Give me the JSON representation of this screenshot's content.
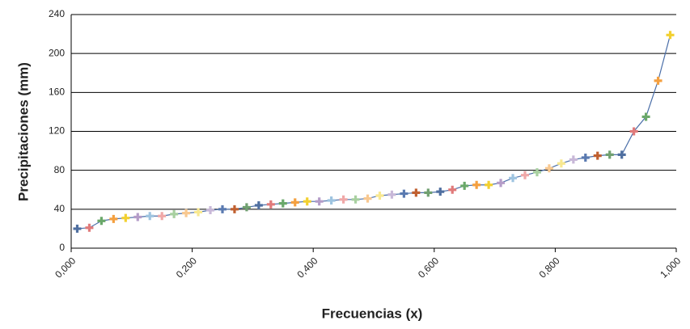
{
  "chart_data": {
    "type": "line",
    "xlabel": "Frecuencias (x)",
    "ylabel": "Precipitaciones (mm)",
    "series": [
      {
        "name": "Precipitaciones",
        "color": "#4a6ea8",
        "x": [
          0.01,
          0.03,
          0.05,
          0.07,
          0.09,
          0.11,
          0.13,
          0.15,
          0.17,
          0.19,
          0.21,
          0.23,
          0.25,
          0.27,
          0.29,
          0.31,
          0.33,
          0.35,
          0.37,
          0.39,
          0.41,
          0.43,
          0.45,
          0.47,
          0.49,
          0.51,
          0.53,
          0.55,
          0.57,
          0.59,
          0.61,
          0.63,
          0.65,
          0.67,
          0.69,
          0.71,
          0.73,
          0.75,
          0.77,
          0.79,
          0.81,
          0.83,
          0.85,
          0.87,
          0.89,
          0.91,
          0.93,
          0.95,
          0.97,
          0.99
        ],
        "values": [
          20,
          21,
          28,
          30,
          31,
          32,
          33,
          33,
          35,
          36,
          37,
          39,
          40,
          40,
          42,
          44,
          45,
          46,
          47,
          48,
          48,
          49,
          50,
          50,
          51,
          54,
          55,
          56,
          57,
          57,
          58,
          60,
          64,
          65,
          65,
          67,
          72,
          75,
          78,
          82,
          87,
          91,
          93,
          95,
          96,
          96,
          120,
          135,
          172,
          219
        ]
      }
    ],
    "marker_colors": [
      "#4f6fa0",
      "#e07a7a",
      "#6aa86a",
      "#f4a040",
      "#f2d030",
      "#b49cc8",
      "#9ec4e0",
      "#f0a8a8",
      "#a8d0a0",
      "#f8c890",
      "#f8e890",
      "#c8b8d8",
      "#5a7ab0",
      "#c06030",
      "#70a070"
    ],
    "xlim": [
      0,
      1
    ],
    "ylim": [
      0,
      240
    ],
    "xticks": [
      {
        "value": 0,
        "label": "0,000"
      },
      {
        "value": 0.2,
        "label": "0,200"
      },
      {
        "value": 0.4,
        "label": "0,400"
      },
      {
        "value": 0.6,
        "label": "0,600"
      },
      {
        "value": 0.8,
        "label": "0,800"
      },
      {
        "value": 1,
        "label": "1,000"
      }
    ],
    "yticks": [
      0,
      40,
      80,
      120,
      160,
      200,
      240
    ],
    "grid": true
  }
}
